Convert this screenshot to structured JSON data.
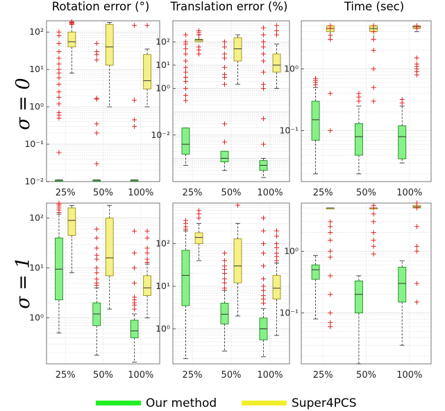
{
  "column_titles": [
    "Rotation error (°)",
    "Translation error (%)",
    "Time (sec)"
  ],
  "row_labels": [
    "σ = 0",
    "σ = 1"
  ],
  "legend": [
    {
      "name": "Our method",
      "color": "#22ee22"
    },
    {
      "name": "Super4PCS",
      "color": "#f2ee2a"
    }
  ],
  "colors": {
    "ours_fill": "#88f088",
    "ours_edge": "#1f8a1f",
    "s4_fill": "#f5f088",
    "s4_edge": "#9a8f1a",
    "outlier": "#e02020",
    "median": "#333333"
  },
  "chart_data": [
    {
      "type": "box",
      "title": "Rotation error (°)",
      "row": "σ = 0",
      "yscale": "log",
      "categories": [
        "25%",
        "50%",
        "100%"
      ],
      "yticks": [
        0.01,
        0.1,
        1,
        10,
        100
      ],
      "ytick_labels": [
        "10⁻²",
        "10⁻¹",
        "10⁰",
        "10¹",
        "10²"
      ],
      "ylim": [
        0.01,
        200
      ],
      "grid": true,
      "series": [
        {
          "name": "Our method",
          "boxes": [
            {
              "whislo": 0.011,
              "q1": 0.011,
              "med": 0.011,
              "q3": 0.011,
              "whishi": 0.011,
              "fliers": [
                0.06,
                0.5,
                0.6,
                0.7,
                1.2,
                1.8,
                2.5,
                4,
                6,
                8,
                10,
                14,
                20,
                30,
                50,
                80,
                100
              ]
            },
            {
              "whislo": 0.011,
              "q1": 0.011,
              "med": 0.011,
              "q3": 0.011,
              "whishi": 0.011,
              "fliers": [
                0.03,
                0.2,
                0.35,
                1.6,
                1.7,
                18,
                25,
                30,
                50
              ]
            },
            {
              "whislo": 0.011,
              "q1": 0.011,
              "med": 0.011,
              "q3": 0.011,
              "whishi": 0.011,
              "fliers": [
                0.3,
                0.45,
                1.5,
                150
              ]
            }
          ]
        },
        {
          "name": "Super4PCS",
          "boxes": [
            {
              "whislo": 8,
              "q1": 40,
              "med": 55,
              "q3": 100,
              "whishi": 160,
              "fliers": [
                160,
                170,
                180,
                190
              ]
            },
            {
              "whislo": 1,
              "q1": 13,
              "med": 40,
              "q3": 160,
              "whishi": 180,
              "fliers": []
            },
            {
              "whislo": 1,
              "q1": 3,
              "med": 5,
              "q3": 25,
              "whishi": 35,
              "fliers": [
                150
              ]
            }
          ]
        }
      ]
    },
    {
      "type": "box",
      "title": "Translation error (%)",
      "row": "σ = 0",
      "yscale": "log",
      "categories": [
        "25%",
        "50%",
        "100%"
      ],
      "yticks": [
        0.01,
        1,
        10,
        100
      ],
      "ytick_labels": [
        "10⁻²",
        "10⁰",
        "10¹",
        "10²"
      ],
      "ylim": [
        0.0001,
        800
      ],
      "grid": true,
      "series": [
        {
          "name": "Our method",
          "boxes": [
            {
              "whislo": 0.0005,
              "q1": 0.0015,
              "med": 0.004,
              "q3": 0.02,
              "whishi": 0.02,
              "fliers": [
                0.3,
                0.5,
                1,
                2,
                3,
                5,
                8,
                15,
                30,
                50,
                80,
                100,
                200
              ]
            },
            {
              "whislo": 0.0003,
              "q1": 0.0007,
              "med": 0.001,
              "q3": 0.002,
              "whishi": 0.002,
              "fliers": [
                0.005,
                0.03,
                1.5,
                3,
                4,
                8,
                20,
                30,
                60,
                100
              ]
            },
            {
              "whislo": 0.00015,
              "q1": 0.0003,
              "med": 0.0005,
              "q3": 0.0008,
              "whishi": 0.001,
              "fliers": [
                0.004,
                0.05,
                1,
                1.5,
                5,
                15,
                30,
                60,
                100,
                200,
                400
              ]
            }
          ]
        },
        {
          "name": "Super4PCS",
          "boxes": [
            {
              "whislo": 100,
              "q1": 100,
              "med": 120,
              "q3": 130,
              "whishi": 200,
              "fliers": [
                30,
                45,
                60,
                200,
                250,
                300
              ]
            },
            {
              "whislo": 1.5,
              "q1": 15,
              "med": 50,
              "q3": 150,
              "whishi": 200,
              "fliers": []
            },
            {
              "whislo": 1,
              "q1": 5,
              "med": 10,
              "q3": 30,
              "whishi": 80,
              "fliers": [
                200,
                300,
                500
              ]
            }
          ]
        }
      ]
    },
    {
      "type": "box",
      "title": "Time (sec)",
      "row": "σ = 0",
      "yscale": "log",
      "categories": [
        "25%",
        "50%",
        "100%"
      ],
      "yticks": [
        0.1,
        1
      ],
      "ytick_labels": [
        "10⁻¹",
        "10⁰"
      ],
      "ylim": [
        0.015,
        6
      ],
      "grid": true,
      "series": [
        {
          "name": "Our method",
          "boxes": [
            {
              "whislo": 0.02,
              "q1": 0.07,
              "med": 0.15,
              "q3": 0.3,
              "whishi": 0.5,
              "fliers": [
                0.55,
                0.6,
                0.65,
                0.7
              ]
            },
            {
              "whislo": 0.02,
              "q1": 0.04,
              "med": 0.08,
              "q3": 0.13,
              "whishi": 0.25,
              "fliers": [
                0.3,
                0.35,
                0.4
              ]
            },
            {
              "whislo": 0.03,
              "q1": 0.035,
              "med": 0.08,
              "q3": 0.12,
              "whishi": 0.25,
              "fliers": [
                0.28,
                0.32
              ]
            }
          ]
        },
        {
          "name": "Super4PCS",
          "boxes": [
            {
              "whislo": 3,
              "q1": 4,
              "med": 4.5,
              "q3": 5,
              "whishi": 5,
              "fliers": [
                0.1,
                0.4,
                3,
                3.5,
                4.5,
                5
              ]
            },
            {
              "whislo": 3,
              "q1": 4,
              "med": 4.5,
              "q3": 5,
              "whishi": 5,
              "fliers": [
                0.3,
                0.5,
                1,
                2,
                3,
                4,
                5
              ]
            },
            {
              "whislo": 4,
              "q1": 4.5,
              "med": 4.8,
              "q3": 5,
              "whishi": 5,
              "fliers": [
                0.8,
                0.9,
                1,
                1.1,
                1.2,
                1.5,
                4.5,
                5
              ]
            }
          ]
        }
      ]
    },
    {
      "type": "box",
      "title": "Rotation error (°)",
      "row": "σ = 1",
      "yscale": "log",
      "categories": [
        "25%",
        "50%",
        "100%"
      ],
      "yticks": [
        1,
        10,
        100
      ],
      "ytick_labels": [
        "10⁰",
        "10¹",
        "10²"
      ],
      "ylim": [
        0.12,
        200
      ],
      "grid": true,
      "series": [
        {
          "name": "Our method",
          "boxes": [
            {
              "whislo": 0.5,
              "q1": 2.3,
              "med": 9.5,
              "q3": 40,
              "whishi": 120,
              "fliers": [
                130,
                145,
                160,
                175,
                190,
                200
              ]
            },
            {
              "whislo": 0.18,
              "q1": 0.7,
              "med": 1.2,
              "q3": 2,
              "whishi": 4,
              "fliers": [
                4.5,
                5,
                6,
                8,
                10,
                15,
                18,
                25,
                40,
                60
              ]
            },
            {
              "whislo": 0.13,
              "q1": 0.4,
              "med": 0.55,
              "q3": 0.9,
              "whishi": 1.2,
              "fliers": [
                1.5,
                1.8,
                2,
                2.3,
                2.6,
                5,
                10,
                20,
                55
              ]
            }
          ]
        },
        {
          "name": "Super4PCS",
          "boxes": [
            {
              "whislo": 8,
              "q1": 45,
              "med": 90,
              "q3": 160,
              "whishi": 180,
              "fliers": []
            },
            {
              "whislo": 1.5,
              "q1": 7,
              "med": 16,
              "q3": 100,
              "whishi": 180,
              "fliers": []
            },
            {
              "whislo": 1,
              "q1": 2.8,
              "med": 4,
              "q3": 7,
              "whishi": 12,
              "fliers": [
                13,
                15,
                20,
                25,
                40,
                55
              ]
            }
          ]
        }
      ]
    },
    {
      "type": "box",
      "title": "Translation error (%)",
      "row": "σ = 1",
      "yscale": "log",
      "categories": [
        "25%",
        "50%",
        "100%"
      ],
      "yticks": [
        1,
        10,
        100
      ],
      "ytick_labels": [
        "10⁰",
        "10¹",
        "10²"
      ],
      "ylim": [
        0.15,
        900
      ],
      "grid": true,
      "series": [
        {
          "name": "Our method",
          "boxes": [
            {
              "whislo": 0.2,
              "q1": 3.5,
              "med": 18,
              "q3": 70,
              "whishi": 200,
              "fliers": [
                220,
                250,
                300,
                350
              ]
            },
            {
              "whislo": 0.3,
              "q1": 1.3,
              "med": 2.2,
              "q3": 4,
              "whishi": 8,
              "fliers": [
                9,
                12,
                15,
                20,
                25,
                30,
                40,
                60
              ]
            },
            {
              "whislo": 0.22,
              "q1": 0.55,
              "med": 1,
              "q3": 1.8,
              "whishi": 3,
              "fliers": [
                4,
                5,
                6,
                8,
                10,
                15,
                30,
                60,
                100,
                200,
                400
              ]
            }
          ]
        },
        {
          "name": "Super4PCS",
          "boxes": [
            {
              "whislo": 40,
              "q1": 100,
              "med": 140,
              "q3": 180,
              "whishi": 300,
              "fliers": [
                400,
                500,
                600
              ]
            },
            {
              "whislo": 2,
              "q1": 12,
              "med": 30,
              "q3": 130,
              "whishi": 300,
              "fliers": [
                800
              ]
            },
            {
              "whislo": 0.7,
              "q1": 5,
              "med": 9,
              "q3": 18,
              "whishi": 35,
              "fliers": [
                40,
                50,
                60,
                80,
                100,
                150,
                200
              ]
            }
          ]
        }
      ]
    },
    {
      "type": "box",
      "title": "Time (sec)",
      "row": "σ = 1",
      "yscale": "log",
      "categories": [
        "25%",
        "50%",
        "100%"
      ],
      "yticks": [
        0.1,
        1
      ],
      "ytick_labels": [
        "10⁻¹",
        "10⁰"
      ],
      "ylim": [
        0.015,
        6
      ],
      "grid": true,
      "series": [
        {
          "name": "Our method",
          "boxes": [
            {
              "whislo": 0.08,
              "q1": 0.35,
              "med": 0.5,
              "q3": 0.6,
              "whishi": 0.85,
              "fliers": []
            },
            {
              "whislo": 0.015,
              "q1": 0.1,
              "med": 0.2,
              "q3": 0.33,
              "whishi": 0.4,
              "fliers": []
            },
            {
              "whislo": 0.03,
              "q1": 0.15,
              "med": 0.3,
              "q3": 0.55,
              "whishi": 0.7,
              "fliers": []
            }
          ]
        },
        {
          "name": "Super4PCS",
          "boxes": [
            {
              "whislo": 5,
              "q1": 5,
              "med": 5,
              "q3": 5,
              "whishi": 5,
              "fliers": [
                0.06,
                0.07,
                0.1,
                0.2,
                0.4,
                0.8,
                1,
                1.5,
                2,
                2.5,
                3
              ]
            },
            {
              "whislo": 5,
              "q1": 5,
              "med": 5,
              "q3": 5,
              "whishi": 5,
              "fliers": [
                0.9,
                1.2,
                1.5,
                2,
                3,
                4,
                5,
                5.5
              ]
            },
            {
              "whislo": 5,
              "q1": 5,
              "med": 5.2,
              "q3": 5.5,
              "whishi": 5.5,
              "fliers": [
                0.15,
                0.3,
                1,
                1.2,
                2.5,
                5,
                6
              ]
            }
          ]
        }
      ]
    }
  ]
}
